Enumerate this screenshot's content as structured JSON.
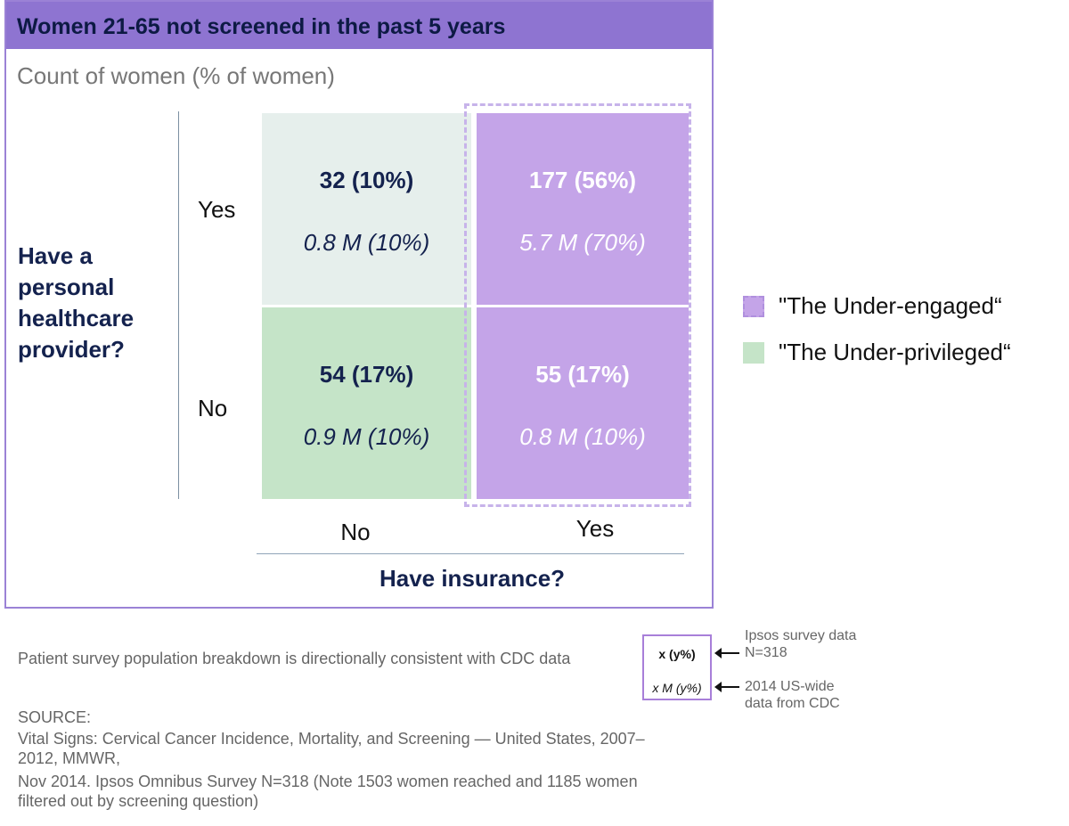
{
  "title": "Women 21-65 not screened in the past 5 years",
  "subtitle": "Count of women (% of women)",
  "row_axis_title": "Have a personal healthcare provider?",
  "col_axis_title": "Have insurance?",
  "row_labels": [
    "Yes",
    "No"
  ],
  "col_labels": [
    "No",
    "Yes"
  ],
  "colors": {
    "header": "#8e74d1",
    "under_engaged": "#c4a4e8",
    "under_privileged": "#c5e4c8",
    "neutral": "#e6efec",
    "border": "#9b82d6"
  },
  "chart_data": {
    "type": "table",
    "title": "Women 21-65 not screened in the past 5 years",
    "rows": [
      "Yes",
      "No"
    ],
    "columns": [
      "No",
      "Yes"
    ],
    "cells": [
      [
        {
          "survey_count": 32,
          "survey_pct": 10,
          "survey_text": "32 (10%)",
          "cdc_millions": 0.8,
          "cdc_pct": 10,
          "cdc_text": "0.8 M (10%)"
        },
        {
          "survey_count": 177,
          "survey_pct": 56,
          "survey_text": "177 (56%)",
          "cdc_millions": 5.7,
          "cdc_pct": 70,
          "cdc_text": "5.7 M (70%)"
        }
      ],
      [
        {
          "survey_count": 54,
          "survey_pct": 17,
          "survey_text": "54 (17%)",
          "cdc_millions": 0.9,
          "cdc_pct": 10,
          "cdc_text": "0.9 M (10%)"
        },
        {
          "survey_count": 55,
          "survey_pct": 17,
          "survey_text": "55 (17%)",
          "cdc_millions": 0.8,
          "cdc_pct": 10,
          "cdc_text": "0.8 M (10%)"
        }
      ]
    ]
  },
  "legend": [
    {
      "label": "\"The Under-engaged“",
      "color": "#c4a4e8"
    },
    {
      "label": "\"The Under-privileged“",
      "color": "#c5e4c8"
    }
  ],
  "footnote": {
    "note": "Patient survey population breakdown is directionally consistent with CDC data",
    "source_label": "SOURCE:",
    "source_lines": [
      "Vital Signs: Cervical Cancer Incidence, Mortality, and Screening — United States, 2007–2012, MMWR,",
      "Nov 2014. Ipsos Omnibus Survey N=318 (Note 1503 women reached and 1185 women filtered out by screening question)"
    ]
  },
  "key": {
    "line1": "x (y%)",
    "line2": "x M (y%)",
    "note1": "Ipsos survey data N=318",
    "note2": "2014 US-wide data from CDC"
  }
}
